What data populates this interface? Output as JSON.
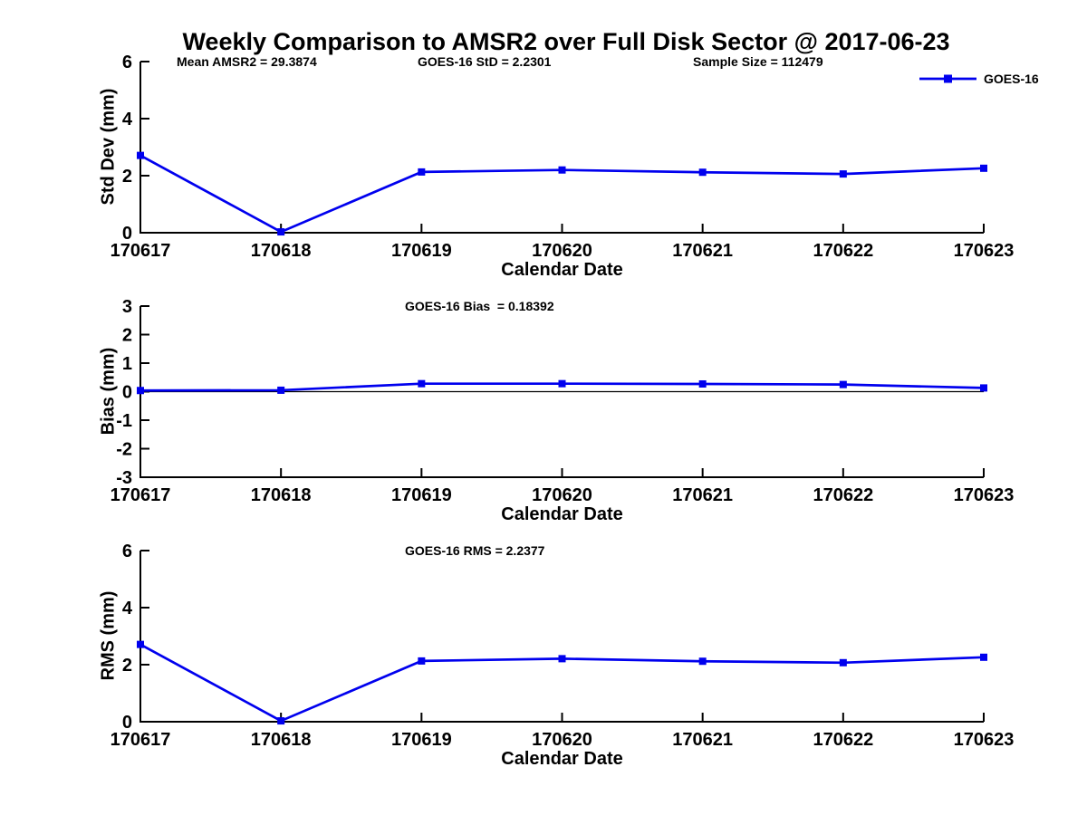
{
  "title": "Weekly Comparison to AMSR2 over Full Disk Sector @ 2017-06-23",
  "legend": {
    "label": "GOES-16",
    "color": "#0000EE"
  },
  "chart_data": [
    {
      "type": "line",
      "x": [
        "170617",
        "170618",
        "170619",
        "170620",
        "170621",
        "170622",
        "170623"
      ],
      "series": [
        {
          "name": "GOES-16",
          "values": [
            2.71,
            0.03,
            2.13,
            2.2,
            2.12,
            2.06,
            2.26
          ]
        }
      ],
      "annotations": [
        "Mean AMSR2 = 29.3874",
        "GOES-16 StD = 2.2301",
        "Sample Size = 112479"
      ],
      "xlabel": "Calendar Date",
      "ylabel": "Std Dev (mm)",
      "ylim": [
        0,
        6
      ],
      "yticks": [
        0,
        2,
        4,
        6
      ],
      "grid": false,
      "zero_line": false,
      "line_color": "#0000EE",
      "legend_position": "top-right-outside"
    },
    {
      "type": "line",
      "x": [
        "170617",
        "170618",
        "170619",
        "170620",
        "170621",
        "170622",
        "170623"
      ],
      "series": [
        {
          "name": "GOES-16",
          "values": [
            0.04,
            0.05,
            0.28,
            0.28,
            0.27,
            0.25,
            0.13
          ]
        }
      ],
      "annotations": [
        "GOES-16 Bias  = 0.18392"
      ],
      "xlabel": "Calendar Date",
      "ylabel": "Bias (mm)",
      "ylim": [
        -3,
        3
      ],
      "yticks": [
        3,
        2,
        1,
        0,
        -1,
        -2,
        -3
      ],
      "grid": false,
      "zero_line": true,
      "line_color": "#0000EE"
    },
    {
      "type": "line",
      "x": [
        "170617",
        "170618",
        "170619",
        "170620",
        "170621",
        "170622",
        "170623"
      ],
      "series": [
        {
          "name": "GOES-16",
          "values": [
            2.71,
            0.03,
            2.13,
            2.21,
            2.12,
            2.07,
            2.26
          ]
        }
      ],
      "annotations": [
        "GOES-16 RMS = 2.2377"
      ],
      "xlabel": "Calendar Date",
      "ylabel": "RMS (mm)",
      "ylim": [
        0,
        6
      ],
      "yticks": [
        0,
        2,
        4,
        6
      ],
      "grid": false,
      "zero_line": false,
      "line_color": "#0000EE"
    }
  ]
}
